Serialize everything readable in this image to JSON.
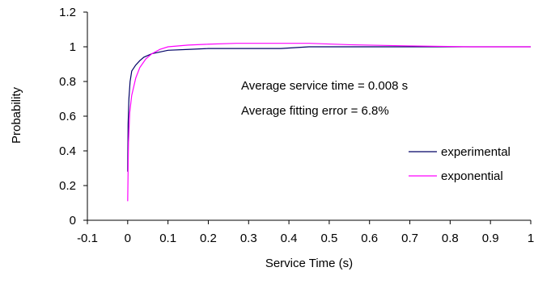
{
  "chart_data": {
    "type": "line",
    "title": "",
    "xlabel": "Service Time (s)",
    "ylabel": "Probability",
    "xlim": [
      -0.1,
      1
    ],
    "ylim": [
      0,
      1.2
    ],
    "x_ticks": [
      "-0.1",
      "0",
      "0.1",
      "0.2",
      "0.3",
      "0.4",
      "0.5",
      "0.6",
      "0.7",
      "0.8",
      "0.9",
      "1"
    ],
    "y_ticks": [
      "0",
      "0.2",
      "0.4",
      "0.6",
      "0.8",
      "1",
      "1.2"
    ],
    "grid": false,
    "legend_position": "right",
    "annotations": [
      "Average service time  = 0.008 s",
      "Average fitting error = 6.8%"
    ],
    "series": [
      {
        "name": "experimental",
        "color": "#000066",
        "points": [
          [
            0,
            0.28
          ],
          [
            0.001,
            0.55
          ],
          [
            0.003,
            0.7
          ],
          [
            0.006,
            0.8
          ],
          [
            0.01,
            0.86
          ],
          [
            0.02,
            0.895
          ],
          [
            0.03,
            0.92
          ],
          [
            0.04,
            0.94
          ],
          [
            0.06,
            0.96
          ],
          [
            0.08,
            0.97
          ],
          [
            0.1,
            0.98
          ],
          [
            0.15,
            0.985
          ],
          [
            0.2,
            0.99
          ],
          [
            0.3,
            0.99
          ],
          [
            0.38,
            0.99
          ],
          [
            0.45,
            1.0
          ],
          [
            0.6,
            1.0
          ],
          [
            0.8,
            1.0
          ],
          [
            1.0,
            1.0
          ]
        ]
      },
      {
        "name": "exponential",
        "color": "#ff00ff",
        "points": [
          [
            0,
            0.11
          ],
          [
            0.002,
            0.45
          ],
          [
            0.005,
            0.62
          ],
          [
            0.01,
            0.72
          ],
          [
            0.02,
            0.82
          ],
          [
            0.03,
            0.88
          ],
          [
            0.045,
            0.93
          ],
          [
            0.06,
            0.96
          ],
          [
            0.08,
            0.985
          ],
          [
            0.1,
            1.0
          ],
          [
            0.15,
            1.01
          ],
          [
            0.2,
            1.015
          ],
          [
            0.27,
            1.02
          ],
          [
            0.35,
            1.02
          ],
          [
            0.45,
            1.02
          ],
          [
            0.55,
            1.012
          ],
          [
            0.7,
            1.005
          ],
          [
            0.85,
            1.0
          ],
          [
            1.0,
            1.0
          ]
        ]
      }
    ]
  }
}
